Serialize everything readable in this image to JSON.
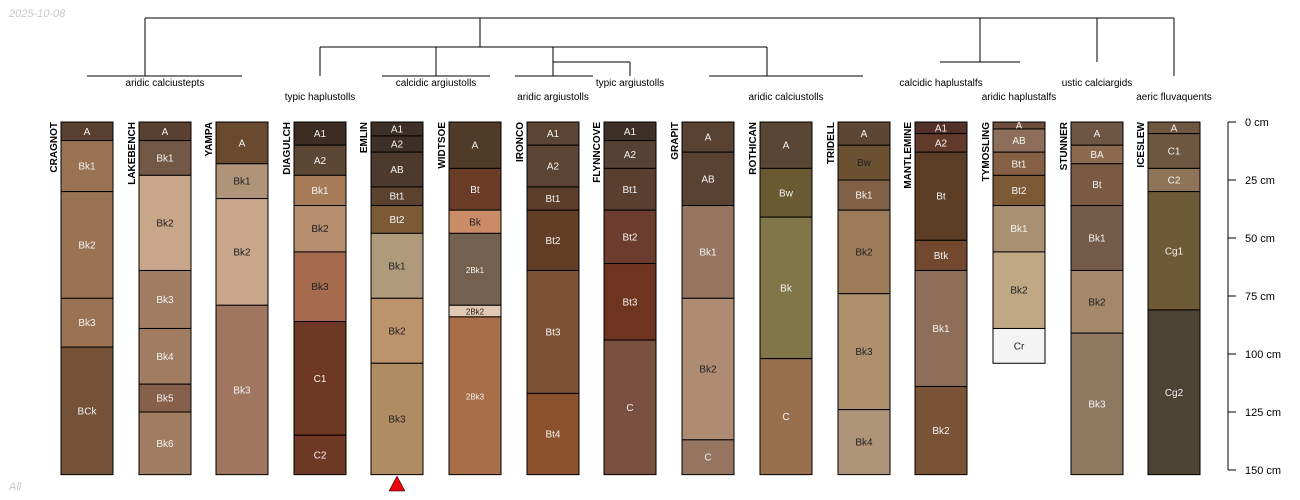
{
  "date_label": "2025-10-08",
  "footer_label": "All",
  "depth_axis": {
    "max_cm": 150,
    "ticks": [
      {
        "value": 0,
        "label": "0 cm"
      },
      {
        "value": 25,
        "label": "25 cm"
      },
      {
        "value": 50,
        "label": "50 cm"
      },
      {
        "value": 75,
        "label": "75 cm"
      },
      {
        "value": 100,
        "label": "100 cm"
      },
      {
        "value": 125,
        "label": "125 cm"
      },
      {
        "value": 150,
        "label": "150 cm"
      }
    ]
  },
  "marker": {
    "profile": "EMLIN",
    "color": "#e8000b"
  },
  "subgroup_labels": [
    "aridic calciustepts",
    "typic haplustolls",
    "calcidic argiustolls",
    "aridic argiustolls",
    "typic argiustolls",
    "aridic calciustolls",
    "calcidic haplustalfs",
    "aridic haplustalfs",
    "ustic calciargids",
    "aeric fluvaquents"
  ],
  "profiles": [
    {
      "name": "CRAGNOT",
      "horizons": [
        {
          "name": "A",
          "top": 0,
          "bottom": 8,
          "color": "#5a4030",
          "text": "light"
        },
        {
          "name": "Bk1",
          "top": 8,
          "bottom": 30,
          "color": "#9a7452",
          "text": "light"
        },
        {
          "name": "Bk2",
          "top": 30,
          "bottom": 76,
          "color": "#9a7452",
          "text": "light"
        },
        {
          "name": "Bk3",
          "top": 76,
          "bottom": 97,
          "color": "#9a7452",
          "text": "light"
        },
        {
          "name": "BCk",
          "top": 97,
          "bottom": 152,
          "color": "#74523a",
          "text": "light"
        }
      ]
    },
    {
      "name": "LAKEBENCH",
      "horizons": [
        {
          "name": "A",
          "top": 0,
          "bottom": 8,
          "color": "#5a4030",
          "text": "light"
        },
        {
          "name": "Bk1",
          "top": 8,
          "bottom": 23,
          "color": "#735846",
          "text": "light"
        },
        {
          "name": "Bk2",
          "top": 23,
          "bottom": 64,
          "color": "#c8a68a",
          "text": "dark"
        },
        {
          "name": "Bk3",
          "top": 64,
          "bottom": 89,
          "color": "#a07c62",
          "text": "light"
        },
        {
          "name": "Bk4",
          "top": 89,
          "bottom": 113,
          "color": "#a07c62",
          "text": "light"
        },
        {
          "name": "Bk5",
          "top": 113,
          "bottom": 125,
          "color": "#86604a",
          "text": "light"
        },
        {
          "name": "Bk6",
          "top": 125,
          "bottom": 152,
          "color": "#a07c62",
          "text": "light"
        }
      ]
    },
    {
      "name": "YAMPA",
      "horizons": [
        {
          "name": "A",
          "top": 0,
          "bottom": 18,
          "color": "#6a4a2e",
          "text": "light"
        },
        {
          "name": "Bk1",
          "top": 18,
          "bottom": 33,
          "color": "#b0947a",
          "text": "dark"
        },
        {
          "name": "Bk2",
          "top": 33,
          "bottom": 79,
          "color": "#c8a68a",
          "text": "dark"
        },
        {
          "name": "Bk3",
          "top": 79,
          "bottom": 152,
          "color": "#a07660",
          "text": "light"
        }
      ]
    },
    {
      "name": "DIAGULCH",
      "horizons": [
        {
          "name": "A1",
          "top": 0,
          "bottom": 10,
          "color": "#3c2c22",
          "text": "light"
        },
        {
          "name": "A2",
          "top": 10,
          "bottom": 23,
          "color": "#5c4634",
          "text": "light"
        },
        {
          "name": "Bk1",
          "top": 23,
          "bottom": 36,
          "color": "#a67c58",
          "text": "light"
        },
        {
          "name": "Bk2",
          "top": 36,
          "bottom": 56,
          "color": "#b48e6e",
          "text": "dark"
        },
        {
          "name": "Bk3",
          "top": 56,
          "bottom": 86,
          "color": "#a66a4e",
          "text": "dark"
        },
        {
          "name": "C1",
          "top": 86,
          "bottom": 135,
          "color": "#6e3824",
          "text": "light"
        },
        {
          "name": "C2",
          "top": 135,
          "bottom": 152,
          "color": "#6e3824",
          "text": "light"
        }
      ]
    },
    {
      "name": "EMLIN",
      "horizons": [
        {
          "name": "A1",
          "top": 0,
          "bottom": 6,
          "color": "#3e3026",
          "text": "light"
        },
        {
          "name": "A2",
          "top": 6,
          "bottom": 13,
          "color": "#3e3026",
          "text": "light"
        },
        {
          "name": "AB",
          "top": 13,
          "bottom": 28,
          "color": "#4c3a2c",
          "text": "light"
        },
        {
          "name": "Bt1",
          "top": 28,
          "bottom": 36,
          "color": "#5a422e",
          "text": "light"
        },
        {
          "name": "Bt2",
          "top": 36,
          "bottom": 48,
          "color": "#7c5a36",
          "text": "light"
        },
        {
          "name": "Bk1",
          "top": 48,
          "bottom": 76,
          "color": "#b09a7c",
          "text": "dark"
        },
        {
          "name": "Bk2",
          "top": 76,
          "bottom": 104,
          "color": "#bc946c",
          "text": "dark"
        },
        {
          "name": "Bk3",
          "top": 104,
          "bottom": 152,
          "color": "#b08c62",
          "text": "dark"
        }
      ]
    },
    {
      "name": "WIDTSOE",
      "horizons": [
        {
          "name": "A",
          "top": 0,
          "bottom": 20,
          "color": "#503a28",
          "text": "light"
        },
        {
          "name": "Bt",
          "top": 20,
          "bottom": 38,
          "color": "#6a3c28",
          "text": "light"
        },
        {
          "name": "Bk",
          "top": 38,
          "bottom": 48,
          "color": "#ca8c66",
          "text": "dark"
        },
        {
          "name": "2Bk1",
          "top": 48,
          "bottom": 79,
          "color": "#74604e",
          "text": "light"
        },
        {
          "name": "2Bk2",
          "top": 79,
          "bottom": 84,
          "color": "#e0c8b2",
          "text": "dark"
        },
        {
          "name": "2Bk3",
          "top": 84,
          "bottom": 152,
          "color": "#a86e48",
          "text": "light"
        }
      ]
    },
    {
      "name": "IRONCO",
      "horizons": [
        {
          "name": "A1",
          "top": 0,
          "bottom": 10,
          "color": "#5c4434",
          "text": "light"
        },
        {
          "name": "A2",
          "top": 10,
          "bottom": 28,
          "color": "#5c4434",
          "text": "light"
        },
        {
          "name": "Bt1",
          "top": 28,
          "bottom": 38,
          "color": "#5c3e2a",
          "text": "light"
        },
        {
          "name": "Bt2",
          "top": 38,
          "bottom": 64,
          "color": "#623e26",
          "text": "light"
        },
        {
          "name": "Bt3",
          "top": 64,
          "bottom": 117,
          "color": "#7c5232",
          "text": "light"
        },
        {
          "name": "Bt4",
          "top": 117,
          "bottom": 152,
          "color": "#8c522e",
          "text": "light"
        }
      ]
    },
    {
      "name": "FLYNNCOVE",
      "horizons": [
        {
          "name": "A1",
          "top": 0,
          "bottom": 8,
          "color": "#3e3026",
          "text": "light"
        },
        {
          "name": "A2",
          "top": 8,
          "bottom": 20,
          "color": "#564234",
          "text": "light"
        },
        {
          "name": "Bt1",
          "top": 20,
          "bottom": 38,
          "color": "#5a3e2e",
          "text": "light"
        },
        {
          "name": "Bt2",
          "top": 38,
          "bottom": 61,
          "color": "#6c3c2e",
          "text": "light"
        },
        {
          "name": "Bt3",
          "top": 61,
          "bottom": 94,
          "color": "#6e3420",
          "text": "light"
        },
        {
          "name": "C",
          "top": 94,
          "bottom": 152,
          "color": "#7a5040",
          "text": "light"
        }
      ]
    },
    {
      "name": "GRAPIT",
      "horizons": [
        {
          "name": "A",
          "top": 0,
          "bottom": 13,
          "color": "#5a4232",
          "text": "light"
        },
        {
          "name": "AB",
          "top": 13,
          "bottom": 36,
          "color": "#5a4232",
          "text": "light"
        },
        {
          "name": "Bk1",
          "top": 36,
          "bottom": 76,
          "color": "#957460",
          "text": "light"
        },
        {
          "name": "Bk2",
          "top": 76,
          "bottom": 137,
          "color": "#ae8c74",
          "text": "dark"
        },
        {
          "name": "C",
          "top": 137,
          "bottom": 152,
          "color": "#957460",
          "text": "light"
        }
      ]
    },
    {
      "name": "ROTHICAN",
      "horizons": [
        {
          "name": "A",
          "top": 0,
          "bottom": 20,
          "color": "#5a4634",
          "text": "light"
        },
        {
          "name": "Bw",
          "top": 20,
          "bottom": 41,
          "color": "#6a5a32",
          "text": "light"
        },
        {
          "name": "Bk",
          "top": 41,
          "bottom": 102,
          "color": "#807648",
          "text": "light"
        },
        {
          "name": "C",
          "top": 102,
          "bottom": 152,
          "color": "#98704e",
          "text": "light"
        }
      ]
    },
    {
      "name": "TRIDELL",
      "horizons": [
        {
          "name": "A",
          "top": 0,
          "bottom": 10,
          "color": "#5e4634",
          "text": "light"
        },
        {
          "name": "Bw",
          "top": 10,
          "bottom": 25,
          "color": "#6c5232",
          "text": "dark"
        },
        {
          "name": "Bk1",
          "top": 25,
          "bottom": 38,
          "color": "#806046",
          "text": "light"
        },
        {
          "name": "Bk2",
          "top": 38,
          "bottom": 74,
          "color": "#9c7c5a",
          "text": "dark"
        },
        {
          "name": "Bk3",
          "top": 74,
          "bottom": 124,
          "color": "#ae906c",
          "text": "dark"
        },
        {
          "name": "Bk4",
          "top": 124,
          "bottom": 152,
          "color": "#ae9478",
          "text": "dark"
        }
      ]
    },
    {
      "name": "MANTLEMINE",
      "horizons": [
        {
          "name": "A1",
          "top": 0,
          "bottom": 5,
          "color": "#54302a",
          "text": "light"
        },
        {
          "name": "A2",
          "top": 5,
          "bottom": 13,
          "color": "#623a2c",
          "text": "light"
        },
        {
          "name": "Bt",
          "top": 13,
          "bottom": 51,
          "color": "#5c3e26",
          "text": "light"
        },
        {
          "name": "Btk",
          "top": 51,
          "bottom": 64,
          "color": "#72482e",
          "text": "light"
        },
        {
          "name": "Bk1",
          "top": 64,
          "bottom": 114,
          "color": "#8e6e58",
          "text": "light"
        },
        {
          "name": "Bk2",
          "top": 114,
          "bottom": 152,
          "color": "#7a5236",
          "text": "light"
        }
      ]
    },
    {
      "name": "TYMOSLING",
      "horizons": [
        {
          "name": "A",
          "top": 0,
          "bottom": 3,
          "color": "#6e4e3a",
          "text": "light"
        },
        {
          "name": "AB",
          "top": 3,
          "bottom": 13,
          "color": "#8c6e5a",
          "text": "light"
        },
        {
          "name": "Bt1",
          "top": 13,
          "bottom": 23,
          "color": "#866044",
          "text": "light"
        },
        {
          "name": "Bt2",
          "top": 23,
          "bottom": 36,
          "color": "#7c5a36",
          "text": "light"
        },
        {
          "name": "Bk1",
          "top": 36,
          "bottom": 56,
          "color": "#a89070",
          "text": "light"
        },
        {
          "name": "Bk2",
          "top": 56,
          "bottom": 89,
          "color": "#c0a884",
          "text": "dark"
        },
        {
          "name": "Cr",
          "top": 89,
          "bottom": 104,
          "color": "#f4f4f4",
          "text": "dark"
        }
      ]
    },
    {
      "name": "STUNNER",
      "horizons": [
        {
          "name": "A",
          "top": 0,
          "bottom": 10,
          "color": "#6e5644",
          "text": "light"
        },
        {
          "name": "BA",
          "top": 10,
          "bottom": 18,
          "color": "#8c6a50",
          "text": "light"
        },
        {
          "name": "Bt",
          "top": 18,
          "bottom": 36,
          "color": "#7a5a42",
          "text": "light"
        },
        {
          "name": "Bk1",
          "top": 36,
          "bottom": 64,
          "color": "#745a48",
          "text": "light"
        },
        {
          "name": "Bk2",
          "top": 64,
          "bottom": 91,
          "color": "#a6886c",
          "text": "dark"
        },
        {
          "name": "Bk3",
          "top": 91,
          "bottom": 152,
          "color": "#8e7860",
          "text": "light"
        }
      ]
    },
    {
      "name": "ICESLEW",
      "horizons": [
        {
          "name": "A",
          "top": 0,
          "bottom": 5,
          "color": "#6e5640",
          "text": "light"
        },
        {
          "name": "C1",
          "top": 5,
          "bottom": 20,
          "color": "#6e5640",
          "text": "light"
        },
        {
          "name": "C2",
          "top": 20,
          "bottom": 30,
          "color": "#8e7458",
          "text": "light"
        },
        {
          "name": "Cg1",
          "top": 30,
          "bottom": 81,
          "color": "#6e5a36",
          "text": "light"
        },
        {
          "name": "Cg2",
          "top": 81,
          "bottom": 152,
          "color": "#4c4434",
          "text": "light"
        }
      ]
    }
  ]
}
